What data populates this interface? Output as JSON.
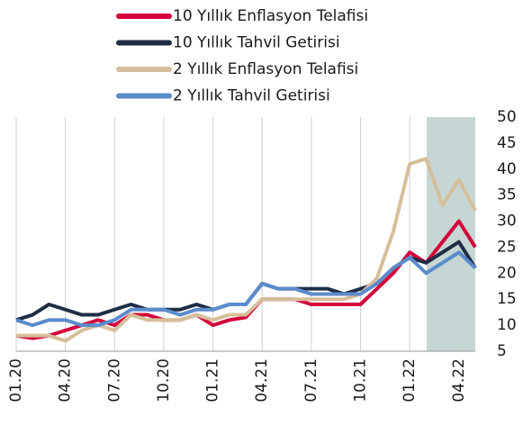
{
  "chart_data": {
    "type": "line",
    "categories": [
      "01.20",
      null,
      null,
      "04.20",
      null,
      null,
      "07.20",
      null,
      null,
      "10.20",
      null,
      null,
      "01.21",
      null,
      null,
      "04.21",
      null,
      null,
      "07.21",
      null,
      null,
      "10.21",
      null,
      null,
      "01.22",
      null,
      null,
      "04.22",
      null
    ],
    "series": [
      {
        "name": "10 Yıllık Enflasyon Telafisi",
        "color": "#d4003a",
        "values": [
          8,
          7.5,
          8,
          9,
          10,
          11,
          10,
          12,
          12,
          11,
          11,
          12,
          10,
          11,
          11.5,
          15,
          15,
          15,
          14,
          14,
          14,
          14,
          17,
          20,
          24,
          22,
          26,
          30,
          25
        ]
      },
      {
        "name": "10 Yıllık Tahvil Getirisi",
        "color": "#1f2d45",
        "values": [
          11,
          12,
          14,
          13,
          12,
          12,
          13,
          14,
          13,
          13,
          13,
          14,
          13,
          14,
          14,
          18,
          17,
          17,
          17,
          17,
          16,
          17,
          18,
          21,
          23,
          22,
          24,
          26,
          21
        ]
      },
      {
        "name": "2 Yıllık Enflasyon Telafisi",
        "color": "#d5bf9a",
        "values": [
          8,
          8,
          8,
          7,
          9,
          10,
          9,
          12,
          11,
          11,
          11,
          12,
          11,
          12,
          12,
          15,
          15,
          15,
          15,
          15,
          15,
          16,
          19,
          28,
          41,
          42,
          33,
          38,
          32
        ]
      },
      {
        "name": "2 Yıllık Tahvil Getirisi",
        "color": "#5b8ccc",
        "values": [
          11,
          10,
          11,
          11,
          10,
          10,
          11,
          13,
          13,
          13,
          12,
          13,
          13,
          14,
          14,
          18,
          17,
          17,
          16,
          16,
          16,
          16,
          18,
          21,
          23,
          20,
          22,
          24,
          21
        ]
      }
    ],
    "ylim": [
      5,
      50
    ],
    "yticks": [
      5,
      10,
      15,
      20,
      25,
      30,
      35,
      40,
      45,
      50
    ],
    "grid": true,
    "legend": "top"
  }
}
